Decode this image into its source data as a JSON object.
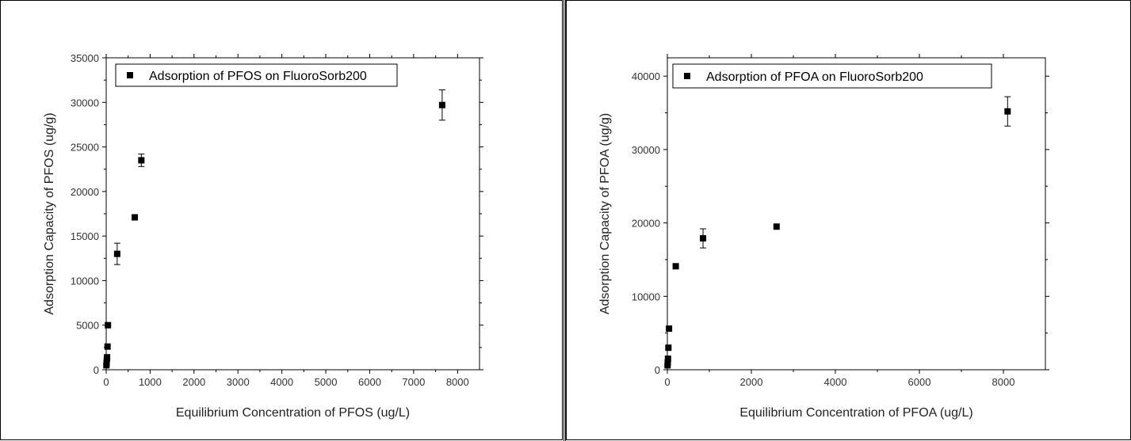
{
  "chart_data": [
    {
      "type": "scatter",
      "xlabel": "Equilibrium Concentration of PFOS (ug/L)",
      "ylabel": "Adsorption Capacity of PFOS (ug/g)",
      "xlim": [
        0,
        8500
      ],
      "ylim": [
        0,
        35000
      ],
      "xticks": [
        0,
        1000,
        2000,
        3000,
        4000,
        5000,
        6000,
        7000,
        8000
      ],
      "yticks": [
        0,
        5000,
        10000,
        15000,
        20000,
        25000,
        30000,
        35000
      ],
      "legend_placement": "top-left",
      "grid": false,
      "series": [
        {
          "name": "Adsorption of PFOS on FluoroSorb200",
          "marker": "square",
          "color": "#000000",
          "x": [
            5,
            10,
            15,
            20,
            30,
            40,
            250,
            650,
            800,
            7650
          ],
          "y": [
            500,
            800,
            1200,
            1400,
            2600,
            5000,
            13000,
            17100,
            23500,
            29700
          ],
          "yerr": [
            0,
            0,
            0,
            0,
            0,
            0,
            1200,
            0,
            700,
            1700
          ]
        }
      ]
    },
    {
      "type": "scatter",
      "xlabel": "Equilibrium Concentration of PFOA (ug/L)",
      "ylabel": "Adsorption Capacity of PFOA (ug/g)",
      "xlim": [
        0,
        9000
      ],
      "ylim": [
        0,
        42500
      ],
      "xticks": [
        0,
        2000,
        4000,
        6000,
        8000
      ],
      "yticks": [
        0,
        10000,
        20000,
        30000,
        40000
      ],
      "legend_placement": "top-left",
      "grid": false,
      "series": [
        {
          "name": "Adsorption of PFOA on FluoroSorb200",
          "marker": "square",
          "color": "#000000",
          "x": [
            5,
            10,
            15,
            25,
            40,
            200,
            850,
            2600,
            8100
          ],
          "y": [
            600,
            1000,
            1500,
            3000,
            5600,
            14100,
            17900,
            19500,
            35200
          ],
          "yerr": [
            0,
            0,
            0,
            0,
            0,
            0,
            1300,
            0,
            2000
          ]
        }
      ]
    }
  ]
}
